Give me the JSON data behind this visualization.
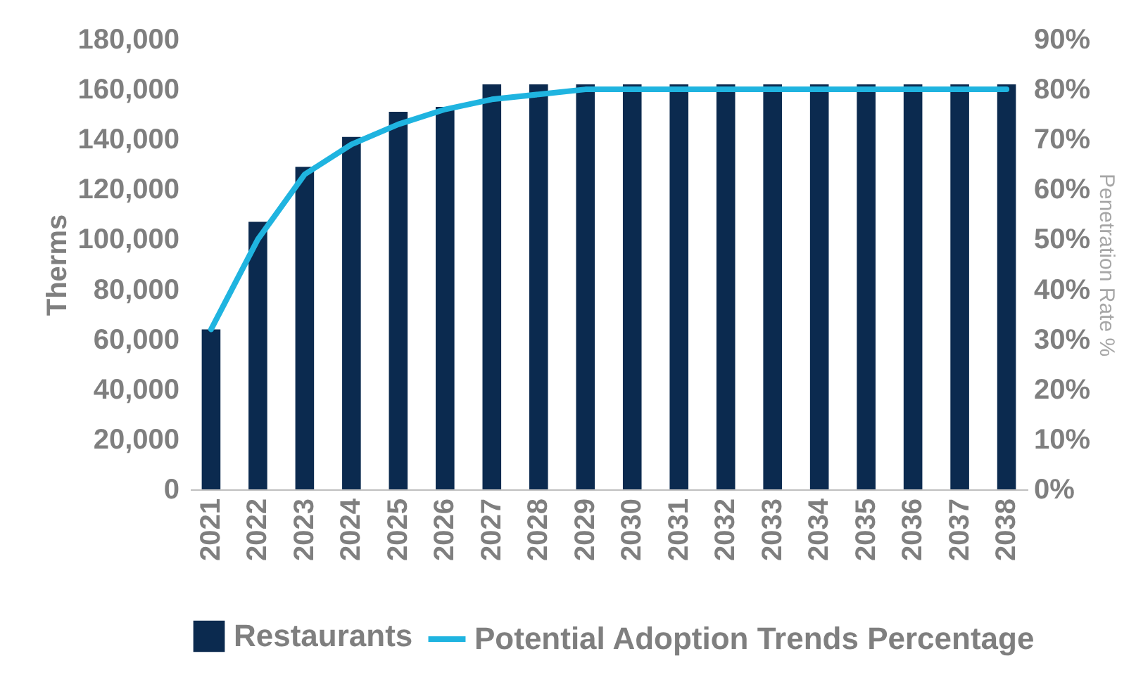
{
  "chart_data": {
    "type": "bar",
    "ylabel": "Therms",
    "y2label": "Penetration Rate %",
    "categories": [
      "2021",
      "2022",
      "2023",
      "2024",
      "2025",
      "2026",
      "2027",
      "2028",
      "2029",
      "2030",
      "2031",
      "2032",
      "2033",
      "2034",
      "2035",
      "2036",
      "2037",
      "2038"
    ],
    "series": [
      {
        "name": "Restaurants",
        "color": "#0b2a4f",
        "values": [
          64000,
          107000,
          129000,
          141000,
          151000,
          153000,
          162000,
          162000,
          162000,
          162000,
          162000,
          162000,
          162000,
          162000,
          162000,
          162000,
          162000,
          162000
        ]
      },
      {
        "name": "Potential Adoption Trends Percentage",
        "type": "line",
        "axis": "y2",
        "color": "#1fb4e0",
        "values": [
          32,
          50,
          63,
          69,
          73,
          76,
          78,
          79,
          80,
          80,
          80,
          80,
          80,
          80,
          80,
          80,
          80,
          80
        ]
      }
    ],
    "ylim": [
      0,
      180000
    ],
    "yticks": [
      0,
      {
        "value": 20000,
        "label": "20,000"
      },
      {
        "value": 40000,
        "label": "40,000"
      },
      {
        "value": 60000,
        "label": "60,000"
      },
      {
        "value": 80000,
        "label": "80,000"
      },
      {
        "value": 100000,
        "label": "100,000"
      },
      {
        "value": 120000,
        "label": "120,000"
      },
      {
        "value": 140000,
        "label": "140,000"
      },
      {
        "value": 160000,
        "label": "160,000"
      },
      {
        "value": 180000,
        "label": "180,000"
      }
    ],
    "y2lim": [
      0,
      90
    ],
    "y2ticks": [
      {
        "value": 0,
        "label": "0%"
      },
      {
        "value": 10,
        "label": "10%"
      },
      {
        "value": 20,
        "label": "20%"
      },
      {
        "value": 30,
        "label": "30%"
      },
      {
        "value": 40,
        "label": "40%"
      },
      {
        "value": 50,
        "label": "50%"
      },
      {
        "value": 60,
        "label": "60%"
      },
      {
        "value": 70,
        "label": "70%"
      },
      {
        "value": 80,
        "label": "80%"
      },
      {
        "value": 90,
        "label": "90%"
      }
    ],
    "grid": false,
    "legend": "bottom",
    "line_style": "solid",
    "marker": "none"
  }
}
